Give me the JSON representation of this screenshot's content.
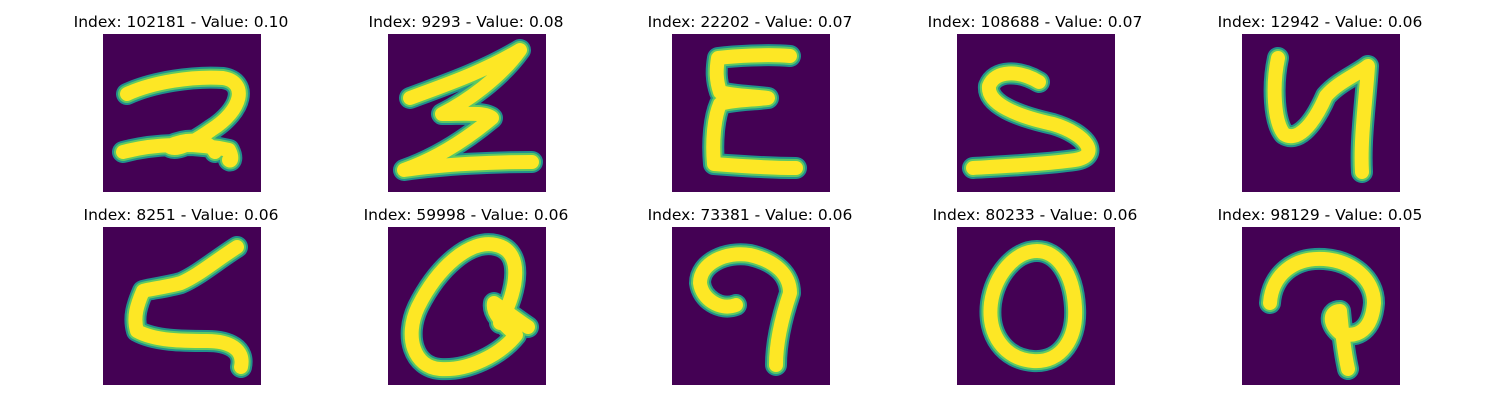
{
  "colors": {
    "background": "#440154",
    "stroke_outer": "#21908d",
    "stroke_mid": "#5ec962",
    "stroke_core": "#fde725"
  },
  "panels": [
    {
      "index": "102181",
      "value": "0.10",
      "title": "Index: 102181 - Value: 0.10"
    },
    {
      "index": "9293",
      "value": "0.08",
      "title": "Index: 9293 - Value: 0.08"
    },
    {
      "index": "22202",
      "value": "0.07",
      "title": "Index: 22202 - Value: 0.07"
    },
    {
      "index": "108688",
      "value": "0.07",
      "title": "Index: 108688 - Value: 0.07"
    },
    {
      "index": "12942",
      "value": "0.06",
      "title": "Index: 12942 - Value: 0.06"
    },
    {
      "index": "8251",
      "value": "0.06",
      "title": "Index: 8251 - Value: 0.06"
    },
    {
      "index": "59998",
      "value": "0.06",
      "title": "Index: 59998 - Value: 0.06"
    },
    {
      "index": "73381",
      "value": "0.06",
      "title": "Index: 73381 - Value: 0.06"
    },
    {
      "index": "80233",
      "value": "0.06",
      "title": "Index: 80233 - Value: 0.06"
    },
    {
      "index": "98129",
      "value": "0.05",
      "title": "Index: 98129 - Value: 0.05"
    }
  ]
}
